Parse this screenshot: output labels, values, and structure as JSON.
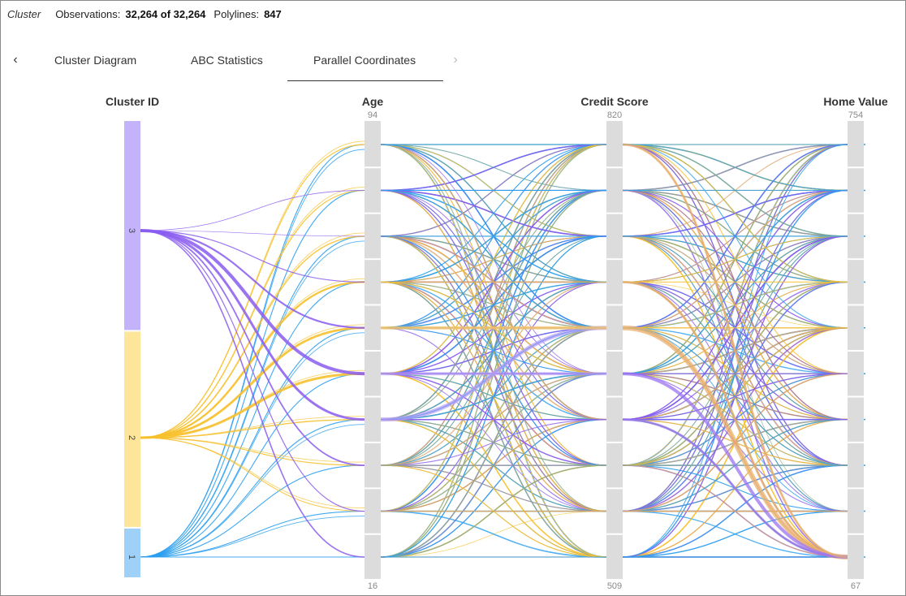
{
  "header": {
    "title": "Cluster",
    "observations_label": "Observations:",
    "observations_value": "32,264 of 32,264",
    "polylines_label": "Polylines:",
    "polylines_value": "847"
  },
  "tabs": [
    {
      "label": "Cluster Diagram",
      "active": false
    },
    {
      "label": "ABC Statistics",
      "active": false
    },
    {
      "label": "Parallel Coordinates",
      "active": true
    }
  ],
  "icons": {
    "prev": "chevron-left-icon",
    "next": "chevron-right-icon"
  },
  "colors": {
    "cluster1": "#2b9ff0",
    "cluster2": "#f7c12d",
    "cluster3": "#8a5cf0",
    "cluster1_bar": "#9fd0f8",
    "cluster2_bar": "#fde59a",
    "cluster3_bar": "#c4b3fb",
    "axis_bar": "#dcdcdc"
  },
  "chart_data": {
    "type": "parallel_coordinates",
    "axes": [
      {
        "name": "Cluster ID",
        "categories": [
          "3",
          "2",
          "1"
        ]
      },
      {
        "name": "Age",
        "max": "94",
        "min": "16",
        "bins": 10
      },
      {
        "name": "Credit Score",
        "max": "820",
        "min": "509",
        "bins": 10
      },
      {
        "name": "Home Value",
        "max": "754",
        "min": "67",
        "bins": 10
      }
    ],
    "cluster_shares": [
      {
        "cluster": "3",
        "share": 0.46
      },
      {
        "cluster": "2",
        "share": 0.43
      },
      {
        "cluster": "1",
        "share": 0.11
      }
    ],
    "polylines_count": 847
  }
}
